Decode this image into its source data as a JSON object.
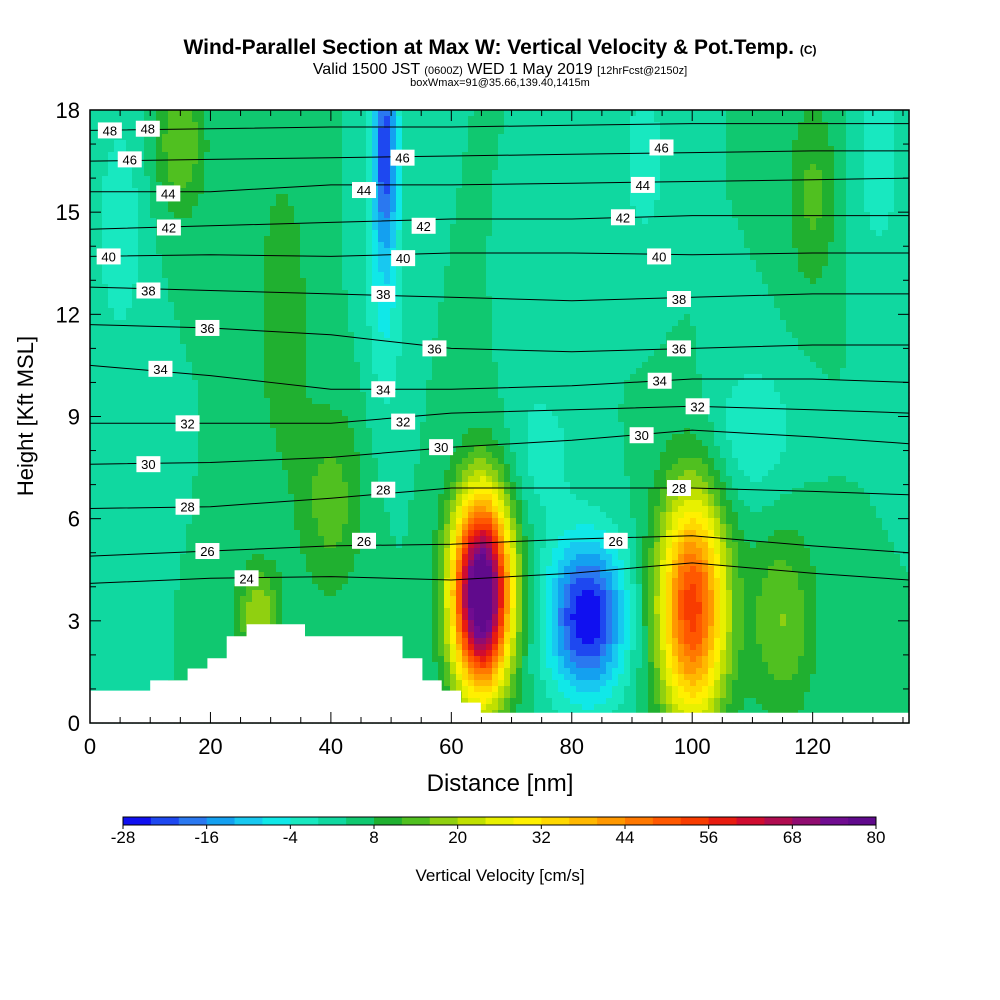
{
  "chart_data": {
    "type": "heatmap",
    "title": {
      "main": "Wind-Parallel Section at Max W: Vertical Velocity & Pot.Temp.",
      "units": "(C)"
    },
    "subtitle": {
      "valid": "Valid 1500 JST",
      "utc": "(0600Z)",
      "date": "WED 1 May 2019",
      "forecast": "[12hrFcst@2150z]"
    },
    "subtitle2": "boxWmax=91@35.66,139.40,1415m",
    "xlabel": "Distance [nm]",
    "ylabel": "Height [Kft MSL]",
    "xlim": [
      0,
      136
    ],
    "ylim": [
      0,
      18
    ],
    "x_ticks": [
      0,
      20,
      40,
      60,
      80,
      100,
      120
    ],
    "y_ticks": [
      0,
      3,
      6,
      9,
      12,
      15,
      18
    ],
    "colorbar": {
      "label": "Vertical Velocity [cm/s]",
      "min": -28,
      "max": 80,
      "step": 4,
      "tick_labels": [
        "-28",
        "-16",
        "-4",
        "8",
        "20",
        "32",
        "44",
        "56",
        "68",
        "80"
      ],
      "colors": [
        "#1010f0",
        "#1e48f0",
        "#2a78f0",
        "#14a0f0",
        "#18c8f0",
        "#10e8e8",
        "#18e8c0",
        "#10d8a0",
        "#10c870",
        "#20b030",
        "#50c020",
        "#90d010",
        "#c0e000",
        "#e8f000",
        "#fff000",
        "#ffd800",
        "#ffb800",
        "#ff9800",
        "#ff7800",
        "#ff5800",
        "#f83c00",
        "#e81c10",
        "#d00c30",
        "#b00c50",
        "#900c70",
        "#700c90",
        "#600a8c"
      ]
    },
    "background_value": 4,
    "velocity_features": [
      {
        "x": 65,
        "z": 3.8,
        "peak": 84,
        "sx": 3.4,
        "sz": 2.0
      },
      {
        "x": 100,
        "z": 3.4,
        "peak": 50,
        "sx": 4.0,
        "sz": 2.4
      },
      {
        "x": 82.5,
        "z": 3.1,
        "peak": -32,
        "sx": 4.5,
        "sz": 1.6
      },
      {
        "x": 49,
        "z": 17.0,
        "peak": -24,
        "sx": 1.5,
        "sz": 2.0
      },
      {
        "x": 49,
        "z": 13.0,
        "peak": -9,
        "sx": 2.2,
        "sz": 3.0
      },
      {
        "x": 40,
        "z": 6.5,
        "peak": 10,
        "sx": 4.0,
        "sz": 2.0
      },
      {
        "x": 15,
        "z": 17.0,
        "peak": 12,
        "sx": 3.0,
        "sz": 1.5
      },
      {
        "x": 32,
        "z": 12.0,
        "peak": 8,
        "sx": 3.0,
        "sz": 3.0
      },
      {
        "x": 115,
        "z": 3.0,
        "peak": 12,
        "sx": 4.0,
        "sz": 2.0
      },
      {
        "x": 110,
        "z": 8.5,
        "peak": -8,
        "sx": 5.0,
        "sz": 1.5
      },
      {
        "x": 5,
        "z": 14.5,
        "peak": -7,
        "sx": 3.0,
        "sz": 2.5
      },
      {
        "x": 75,
        "z": 8.0,
        "peak": -6,
        "sx": 4.0,
        "sz": 1.5
      },
      {
        "x": 92,
        "z": 16.5,
        "peak": -6,
        "sx": 3.0,
        "sz": 2.0
      },
      {
        "x": 120,
        "z": 15.5,
        "peak": 9,
        "sx": 3.0,
        "sz": 2.0
      },
      {
        "x": 28,
        "z": 3.2,
        "peak": 16,
        "sx": 2.5,
        "sz": 1.0
      },
      {
        "x": 131,
        "z": 16.5,
        "peak": -6,
        "sx": 3.0,
        "sz": 2.5
      }
    ],
    "isentropes": [
      {
        "theta": 24,
        "points": [
          [
            0,
            4.1
          ],
          [
            20,
            4.25
          ],
          [
            40,
            4.3
          ],
          [
            60,
            4.2
          ],
          [
            80,
            4.4
          ],
          [
            100,
            4.7
          ],
          [
            120,
            4.4
          ],
          [
            136,
            4.2
          ]
        ]
      },
      {
        "theta": 26,
        "points": [
          [
            0,
            4.9
          ],
          [
            20,
            5.05
          ],
          [
            40,
            5.2
          ],
          [
            60,
            5.25
          ],
          [
            80,
            5.4
          ],
          [
            100,
            5.5
          ],
          [
            120,
            5.2
          ],
          [
            136,
            5.0
          ]
        ]
      },
      {
        "theta": 28,
        "points": [
          [
            0,
            6.3
          ],
          [
            20,
            6.35
          ],
          [
            40,
            6.6
          ],
          [
            60,
            6.9
          ],
          [
            80,
            6.9
          ],
          [
            100,
            6.9
          ],
          [
            120,
            6.8
          ],
          [
            136,
            6.7
          ]
        ]
      },
      {
        "theta": 30,
        "points": [
          [
            0,
            7.6
          ],
          [
            20,
            7.65
          ],
          [
            40,
            7.8
          ],
          [
            60,
            8.1
          ],
          [
            80,
            8.3
          ],
          [
            100,
            8.6
          ],
          [
            120,
            8.4
          ],
          [
            136,
            8.2
          ]
        ]
      },
      {
        "theta": 32,
        "points": [
          [
            0,
            8.8
          ],
          [
            20,
            8.8
          ],
          [
            40,
            8.8
          ],
          [
            60,
            9.1
          ],
          [
            80,
            9.2
          ],
          [
            100,
            9.3
          ],
          [
            120,
            9.2
          ],
          [
            136,
            9.1
          ]
        ]
      },
      {
        "theta": 34,
        "points": [
          [
            0,
            10.5
          ],
          [
            20,
            10.2
          ],
          [
            40,
            9.8
          ],
          [
            60,
            9.8
          ],
          [
            80,
            9.9
          ],
          [
            100,
            10.1
          ],
          [
            120,
            10.1
          ],
          [
            136,
            10.0
          ]
        ]
      },
      {
        "theta": 36,
        "points": [
          [
            0,
            11.7
          ],
          [
            20,
            11.6
          ],
          [
            40,
            11.4
          ],
          [
            60,
            11.0
          ],
          [
            80,
            10.9
          ],
          [
            100,
            11.0
          ],
          [
            120,
            11.1
          ],
          [
            136,
            11.1
          ]
        ]
      },
      {
        "theta": 38,
        "points": [
          [
            0,
            12.8
          ],
          [
            20,
            12.7
          ],
          [
            40,
            12.6
          ],
          [
            60,
            12.5
          ],
          [
            80,
            12.4
          ],
          [
            100,
            12.5
          ],
          [
            120,
            12.6
          ],
          [
            136,
            12.6
          ]
        ]
      },
      {
        "theta": 40,
        "points": [
          [
            0,
            13.7
          ],
          [
            20,
            13.75
          ],
          [
            40,
            13.7
          ],
          [
            60,
            13.8
          ],
          [
            80,
            13.8
          ],
          [
            100,
            13.75
          ],
          [
            120,
            13.8
          ],
          [
            136,
            13.8
          ]
        ]
      },
      {
        "theta": 42,
        "points": [
          [
            0,
            14.5
          ],
          [
            20,
            14.6
          ],
          [
            40,
            14.7
          ],
          [
            60,
            14.8
          ],
          [
            80,
            14.8
          ],
          [
            100,
            14.9
          ],
          [
            120,
            14.9
          ],
          [
            136,
            14.9
          ]
        ]
      },
      {
        "theta": 44,
        "points": [
          [
            0,
            15.6
          ],
          [
            20,
            15.6
          ],
          [
            40,
            15.8
          ],
          [
            60,
            15.8
          ],
          [
            80,
            15.85
          ],
          [
            100,
            15.9
          ],
          [
            120,
            15.95
          ],
          [
            136,
            16.0
          ]
        ]
      },
      {
        "theta": 46,
        "points": [
          [
            0,
            16.5
          ],
          [
            20,
            16.55
          ],
          [
            40,
            16.6
          ],
          [
            60,
            16.65
          ],
          [
            80,
            16.7
          ],
          [
            100,
            16.75
          ],
          [
            120,
            16.8
          ],
          [
            136,
            16.8
          ]
        ]
      },
      {
        "theta": 48,
        "points": [
          [
            0,
            17.4
          ],
          [
            20,
            17.45
          ],
          [
            40,
            17.5
          ],
          [
            60,
            17.5
          ],
          [
            80,
            17.55
          ],
          [
            100,
            17.6
          ],
          [
            120,
            17.6
          ],
          [
            136,
            17.6
          ]
        ]
      }
    ],
    "isentrope_labels": [
      {
        "text": "48",
        "x": 3.3,
        "z": 17.4
      },
      {
        "text": "48",
        "x": 9.6,
        "z": 17.45
      },
      {
        "text": "46",
        "x": 6.6,
        "z": 16.55
      },
      {
        "text": "46",
        "x": 51.9,
        "z": 16.6
      },
      {
        "text": "46",
        "x": 94.9,
        "z": 16.9
      },
      {
        "text": "44",
        "x": 13.0,
        "z": 15.55
      },
      {
        "text": "44",
        "x": 45.5,
        "z": 15.65
      },
      {
        "text": "44",
        "x": 91.8,
        "z": 15.8
      },
      {
        "text": "42",
        "x": 13.1,
        "z": 14.55
      },
      {
        "text": "42",
        "x": 55.4,
        "z": 14.6
      },
      {
        "text": "42",
        "x": 88.5,
        "z": 14.85
      },
      {
        "text": "40",
        "x": 3.1,
        "z": 13.7
      },
      {
        "text": "40",
        "x": 52.0,
        "z": 13.65
      },
      {
        "text": "40",
        "x": 94.5,
        "z": 13.7
      },
      {
        "text": "38",
        "x": 9.7,
        "z": 12.7
      },
      {
        "text": "38",
        "x": 48.7,
        "z": 12.6
      },
      {
        "text": "38",
        "x": 97.8,
        "z": 12.45
      },
      {
        "text": "36",
        "x": 19.5,
        "z": 11.6
      },
      {
        "text": "36",
        "x": 57.2,
        "z": 11.0
      },
      {
        "text": "36",
        "x": 97.8,
        "z": 11.0
      },
      {
        "text": "34",
        "x": 11.7,
        "z": 10.4
      },
      {
        "text": "34",
        "x": 48.7,
        "z": 9.8
      },
      {
        "text": "34",
        "x": 94.6,
        "z": 10.05
      },
      {
        "text": "32",
        "x": 16.2,
        "z": 8.8
      },
      {
        "text": "32",
        "x": 52.0,
        "z": 8.85
      },
      {
        "text": "32",
        "x": 100.9,
        "z": 9.3
      },
      {
        "text": "30",
        "x": 9.7,
        "z": 7.6
      },
      {
        "text": "30",
        "x": 58.3,
        "z": 8.1
      },
      {
        "text": "30",
        "x": 91.6,
        "z": 8.45
      },
      {
        "text": "28",
        "x": 16.2,
        "z": 6.35
      },
      {
        "text": "28",
        "x": 48.7,
        "z": 6.85
      },
      {
        "text": "28",
        "x": 97.8,
        "z": 6.9
      },
      {
        "text": "26",
        "x": 19.5,
        "z": 5.05
      },
      {
        "text": "26",
        "x": 45.5,
        "z": 5.35
      },
      {
        "text": "26",
        "x": 87.3,
        "z": 5.35
      },
      {
        "text": "24",
        "x": 26.0,
        "z": 4.25
      }
    ],
    "terrain": [
      [
        0,
        0.95
      ],
      [
        10,
        0.95
      ],
      [
        10,
        1.25
      ],
      [
        16.2,
        1.25
      ],
      [
        16.2,
        1.6
      ],
      [
        19.5,
        1.6
      ],
      [
        19.5,
        1.9
      ],
      [
        22.7,
        1.9
      ],
      [
        22.7,
        2.55
      ],
      [
        26,
        2.55
      ],
      [
        26,
        2.9
      ],
      [
        35.7,
        2.9
      ],
      [
        35.7,
        2.55
      ],
      [
        51.9,
        2.55
      ],
      [
        51.9,
        1.9
      ],
      [
        55.2,
        1.9
      ],
      [
        55.2,
        1.25
      ],
      [
        58.4,
        1.25
      ],
      [
        58.4,
        0.95
      ],
      [
        61.6,
        0.95
      ],
      [
        61.6,
        0.6
      ],
      [
        64.9,
        0.6
      ],
      [
        64.9,
        0.3
      ],
      [
        136,
        0.3
      ]
    ]
  }
}
